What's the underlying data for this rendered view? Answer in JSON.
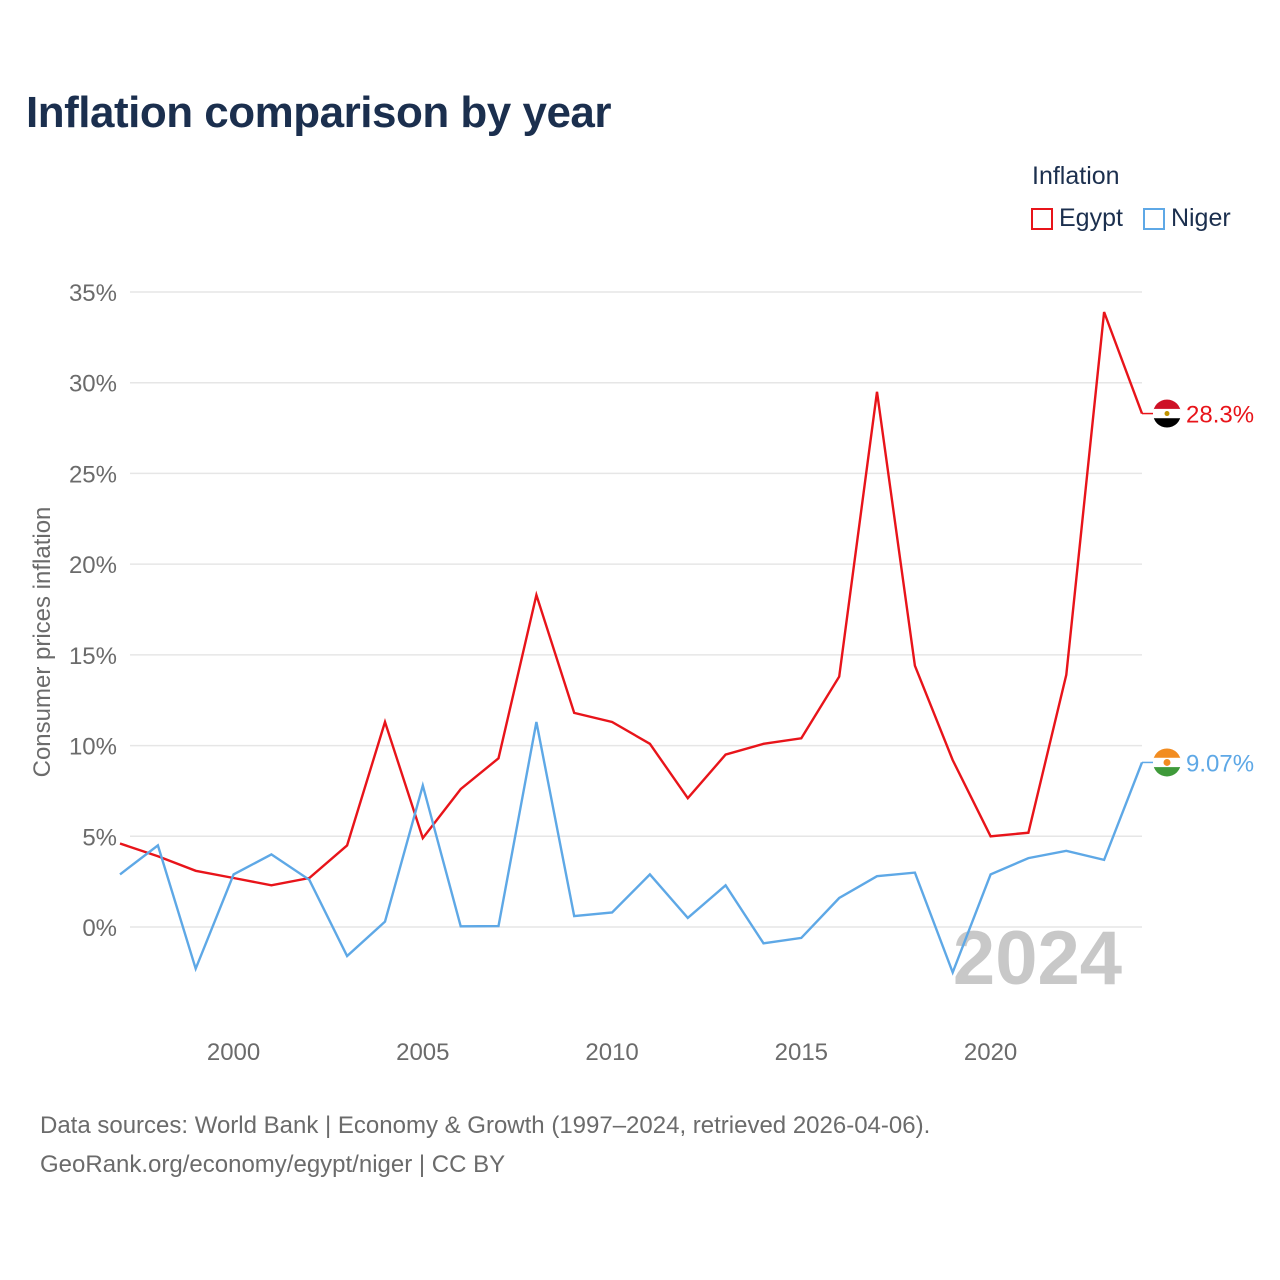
{
  "title": "Inflation comparison by year",
  "legend": {
    "title": "Inflation",
    "items": [
      {
        "label": "Egypt",
        "color": "#e8141a"
      },
      {
        "label": "Niger",
        "color": "#5ea8e6"
      }
    ]
  },
  "source": {
    "line1": "Data sources: World Bank | Economy & Growth (1997–2024, retrieved 2026-04-06).",
    "line2": "GeoRank.org/economy/egypt/niger | CC BY"
  },
  "chart_data": {
    "type": "line",
    "title": "Inflation comparison by year",
    "xlabel": "",
    "ylabel": "Consumer prices inflation",
    "xlim": [
      1997,
      2024
    ],
    "ylim": [
      -4,
      35
    ],
    "y_ticks": [
      0,
      5,
      10,
      15,
      20,
      25,
      30,
      35
    ],
    "y_tick_labels": [
      "0%",
      "5%",
      "10%",
      "15%",
      "20%",
      "25%",
      "30%",
      "35%"
    ],
    "x_ticks": [
      2000,
      2005,
      2010,
      2015,
      2020
    ],
    "x_tick_labels": [
      "2000",
      "2005",
      "2010",
      "2015",
      "2020"
    ],
    "grid": true,
    "year_watermark": "2024",
    "x": [
      1997,
      1998,
      1999,
      2000,
      2001,
      2002,
      2003,
      2004,
      2005,
      2006,
      2007,
      2008,
      2009,
      2010,
      2011,
      2012,
      2013,
      2014,
      2015,
      2016,
      2017,
      2018,
      2019,
      2020,
      2021,
      2022,
      2023,
      2024
    ],
    "series": [
      {
        "name": "Egypt",
        "color": "#e8141a",
        "end_label": "28.3%",
        "values": [
          4.6,
          3.9,
          3.1,
          2.7,
          2.3,
          2.7,
          4.5,
          11.3,
          4.9,
          7.6,
          9.3,
          18.3,
          11.8,
          11.3,
          10.1,
          7.1,
          9.5,
          10.1,
          10.4,
          13.8,
          29.5,
          14.4,
          9.2,
          5.0,
          5.2,
          13.9,
          33.9,
          28.3
        ]
      },
      {
        "name": "Niger",
        "color": "#5ea8e6",
        "end_label": "9.07%",
        "values": [
          2.9,
          4.5,
          -2.3,
          2.9,
          4.0,
          2.6,
          -1.6,
          0.3,
          7.8,
          0.04,
          0.05,
          11.3,
          0.6,
          0.8,
          2.9,
          0.5,
          2.3,
          -0.9,
          -0.6,
          1.6,
          2.8,
          3.0,
          -2.5,
          2.9,
          3.8,
          4.2,
          3.7,
          9.07
        ]
      }
    ]
  }
}
